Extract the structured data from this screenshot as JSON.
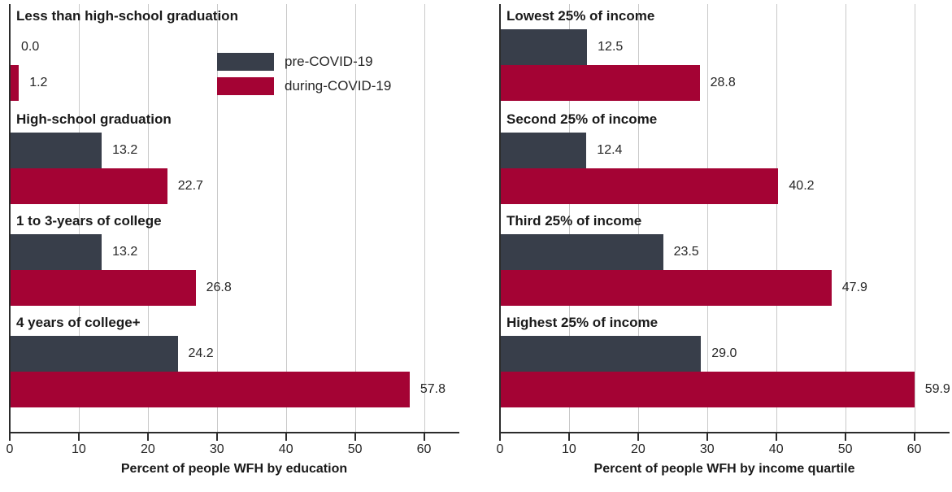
{
  "chart_data": [
    {
      "type": "bar",
      "orientation": "horizontal",
      "title": "",
      "xlabel": "Percent of people WFH by education",
      "ylabel": "",
      "categories": [
        "Less than high-school graduation",
        "High-school graduation",
        "1 to 3-years of college",
        "4 years of college+"
      ],
      "series": [
        {
          "name": "pre-COVID-19",
          "color": "#383e4a",
          "values": [
            0.0,
            13.2,
            13.2,
            24.2
          ]
        },
        {
          "name": "during-COVID-19",
          "color": "#a40334",
          "values": [
            1.2,
            22.7,
            26.8,
            57.8
          ]
        }
      ],
      "xticks": [
        0,
        10,
        20,
        30,
        40,
        50,
        60
      ],
      "xlim": [
        0,
        65
      ],
      "grid": true,
      "value_labels": true,
      "value_label_format": "one-decimal"
    },
    {
      "type": "bar",
      "orientation": "horizontal",
      "title": "",
      "xlabel": "Percent of people WFH by income quartile",
      "ylabel": "",
      "categories": [
        "Lowest 25% of income",
        "Second 25% of income",
        "Third 25% of income",
        "Highest 25% of income"
      ],
      "series": [
        {
          "name": "pre-COVID-19",
          "color": "#383e4a",
          "values": [
            12.5,
            12.4,
            23.5,
            29.0
          ]
        },
        {
          "name": "during-COVID-19",
          "color": "#a40334",
          "values": [
            28.8,
            40.2,
            47.9,
            59.9
          ]
        }
      ],
      "xticks": [
        0,
        10,
        20,
        30,
        40,
        50,
        60
      ],
      "xlim": [
        0,
        65
      ],
      "grid": true,
      "value_labels": true,
      "value_label_format": "one-decimal"
    }
  ],
  "legend": {
    "position": "inside-left-panel",
    "items": [
      {
        "label": "pre-COVID-19",
        "color": "#383e4a"
      },
      {
        "label": "during-COVID-19",
        "color": "#a40334"
      }
    ]
  },
  "styles": {
    "grid_color": "#c9c9c9",
    "axis_color": "#2b2b2b",
    "text_color": "#262626",
    "background": "#ffffff"
  }
}
